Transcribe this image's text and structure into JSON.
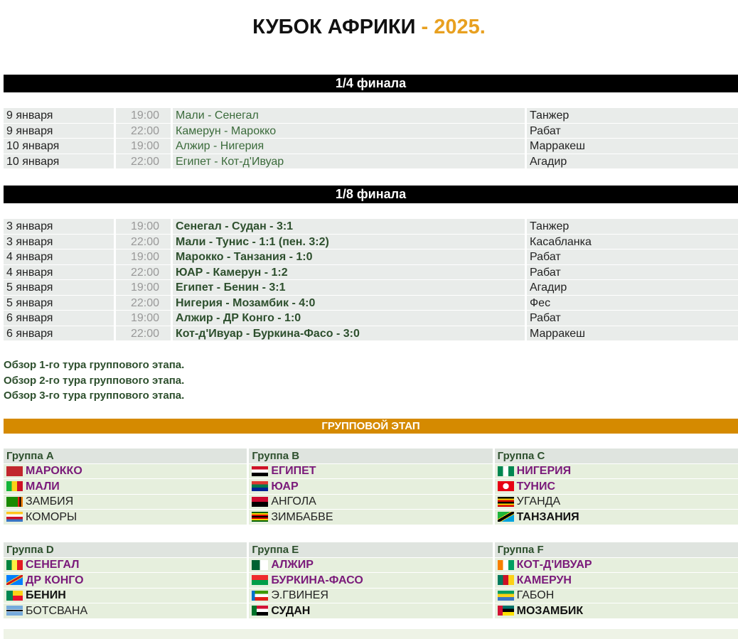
{
  "title": {
    "main": "КУБОК АФРИКИ",
    "year": "- 2025."
  },
  "quarter": {
    "title": "1/4 финала",
    "rows": [
      {
        "date": "9 января",
        "time": "19:00",
        "match": "Мали - Сенегал",
        "venue": "Танжер"
      },
      {
        "date": "9 января",
        "time": "22:00",
        "match": "Камерун - Марокко",
        "venue": "Рабат"
      },
      {
        "date": "10 января",
        "time": "19:00",
        "match": "Алжир - Нигерия",
        "venue": "Марракеш"
      },
      {
        "date": "10 января",
        "time": "22:00",
        "match": "Египет - Кот-д'Ивуар",
        "venue": "Агадир"
      }
    ]
  },
  "round16": {
    "title": "1/8 финала",
    "rows": [
      {
        "date": "3 января",
        "time": "19:00",
        "match": "Сенегал - Судан - 3:1",
        "venue": "Танжер"
      },
      {
        "date": "3 января",
        "time": "22:00",
        "match": "Мали - Тунис - 1:1 (пен. 3:2)",
        "venue": "Касабланка"
      },
      {
        "date": "4 января",
        "time": "19:00",
        "match": "Марокко - Танзания - 1:0",
        "venue": "Рабат"
      },
      {
        "date": "4 января",
        "time": "22:00",
        "match": "ЮАР - Камерун - 1:2",
        "venue": "Рабат"
      },
      {
        "date": "5 января",
        "time": "19:00",
        "match": "Египет - Бенин - 3:1",
        "venue": "Агадир"
      },
      {
        "date": "5 января",
        "time": "22:00",
        "match": "Нигерия - Мозамбик - 4:0",
        "venue": "Фес"
      },
      {
        "date": "6 января",
        "time": "19:00",
        "match": "Алжир - ДР Конго - 1:0",
        "venue": "Рабат"
      },
      {
        "date": "6 января",
        "time": "22:00",
        "match": "Кот-д'Ивуар - Буркина-Фасо - 3:0",
        "venue": "Марракеш"
      }
    ]
  },
  "links": [
    "Обзор 1-го тура группового этапа.",
    "Обзор 2-го тура группового этапа.",
    "Обзор 3-го тура группового этапа."
  ],
  "group_stage": {
    "title": "ГРУППОВОЙ ЭТАП",
    "colors": {
      "qualified": "#7a1a7a",
      "third_qualified": "#111111",
      "eliminated": "#222222"
    },
    "groups": [
      {
        "name": "Группа A",
        "teams": [
          {
            "name": "МАРОККО",
            "flag": "morocco",
            "status": "q"
          },
          {
            "name": "МАЛИ",
            "flag": "mali",
            "status": "q"
          },
          {
            "name": "ЗАМБИЯ",
            "flag": "zambia",
            "status": "e"
          },
          {
            "name": "КОМОРЫ",
            "flag": "comoros",
            "status": "e"
          }
        ]
      },
      {
        "name": "Группа B",
        "teams": [
          {
            "name": "ЕГИПЕТ",
            "flag": "egypt",
            "status": "q"
          },
          {
            "name": "ЮАР",
            "flag": "rsa",
            "status": "q"
          },
          {
            "name": "АНГОЛА",
            "flag": "angola",
            "status": "e"
          },
          {
            "name": "ЗИМБАБВЕ",
            "flag": "zimbabwe",
            "status": "e"
          }
        ]
      },
      {
        "name": "Группа C",
        "teams": [
          {
            "name": "НИГЕРИЯ",
            "flag": "nigeria",
            "status": "q"
          },
          {
            "name": "ТУНИС",
            "flag": "tunisia",
            "status": "q"
          },
          {
            "name": "УГАНДА",
            "flag": "uganda",
            "status": "e"
          },
          {
            "name": "ТАНЗАНИЯ",
            "flag": "tanzania",
            "status": "t"
          }
        ]
      },
      {
        "name": "Группа D",
        "teams": [
          {
            "name": "СЕНЕГАЛ",
            "flag": "senegal",
            "status": "q"
          },
          {
            "name": "ДР КОНГО",
            "flag": "drc",
            "status": "q"
          },
          {
            "name": "БЕНИН",
            "flag": "benin",
            "status": "t"
          },
          {
            "name": "БОТСВАНА",
            "flag": "botswana",
            "status": "e"
          }
        ]
      },
      {
        "name": "Группа E",
        "teams": [
          {
            "name": "АЛЖИР",
            "flag": "algeria",
            "status": "q"
          },
          {
            "name": "БУРКИНА-ФАСО",
            "flag": "burkina",
            "status": "q"
          },
          {
            "name": "Э.ГВИНЕЯ",
            "flag": "eqguinea",
            "status": "e"
          },
          {
            "name": "СУДАН",
            "flag": "sudan",
            "status": "t"
          }
        ]
      },
      {
        "name": "Группа F",
        "teams": [
          {
            "name": "КОТ-Д'ИВУАР",
            "flag": "ivorycoast",
            "status": "q"
          },
          {
            "name": "КАМЕРУН",
            "flag": "cameroon",
            "status": "q"
          },
          {
            "name": "ГАБОН",
            "flag": "gabon",
            "status": "e"
          },
          {
            "name": "МОЗАМБИК",
            "flag": "mozambique",
            "status": "t"
          }
        ]
      }
    ]
  }
}
